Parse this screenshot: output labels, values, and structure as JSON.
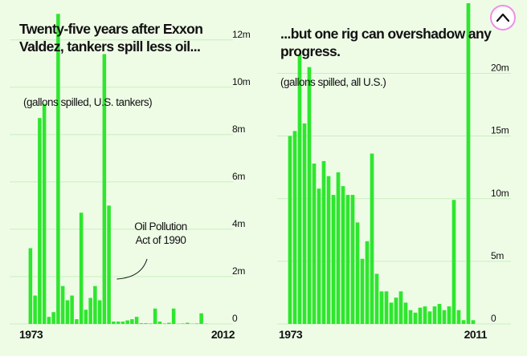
{
  "chart_data": [
    {
      "type": "bar",
      "title": "Twenty-five years after Exxon Valdez, tankers spill less oil...",
      "subtitle": "(gallons spilled, U.S. tankers)",
      "x_start_label": "1973",
      "x_end_label": "2012",
      "y_unit": "m",
      "ylim": [
        0,
        12.5
      ],
      "y_ticks": [
        {
          "value": 0,
          "label": "0"
        },
        {
          "value": 2,
          "label": "2m"
        },
        {
          "value": 4,
          "label": "4m"
        },
        {
          "value": 6,
          "label": "6m"
        },
        {
          "value": 8,
          "label": "8m"
        },
        {
          "value": 10,
          "label": "10m"
        },
        {
          "value": 12,
          "label": "12m"
        }
      ],
      "grid": true,
      "annotation": {
        "lines": [
          "Oil Pollution",
          "Act of 1990"
        ],
        "year": 1990
      },
      "categories": [
        1973,
        1974,
        1975,
        1976,
        1977,
        1978,
        1979,
        1980,
        1981,
        1982,
        1983,
        1984,
        1985,
        1986,
        1987,
        1988,
        1989,
        1990,
        1991,
        1992,
        1993,
        1994,
        1995,
        1996,
        1997,
        1998,
        1999,
        2000,
        2001,
        2002,
        2003,
        2004,
        2005,
        2006,
        2007,
        2008,
        2009,
        2010,
        2011,
        2012
      ],
      "values": [
        3.2,
        1.2,
        8.7,
        9.3,
        0.3,
        0.5,
        13.1,
        1.6,
        1.0,
        1.2,
        0.2,
        4.7,
        0.6,
        1.1,
        1.6,
        1.0,
        11.4,
        5.0,
        0.1,
        0.1,
        0.1,
        0.15,
        0.2,
        0.3,
        0.03,
        0.03,
        0.02,
        0.65,
        0.1,
        0.02,
        0.05,
        0.65,
        0.01,
        0.02,
        0.05,
        0.01,
        0.02,
        0.45,
        0.01,
        0
      ]
    },
    {
      "type": "bar",
      "title": "...but one rig can overshadow any progress.",
      "subtitle": "(gallons spilled, all U.S.)",
      "x_start_label": "1973",
      "x_end_label": "2011",
      "y_unit": "m",
      "ylim": [
        0,
        25.6
      ],
      "y_ticks": [
        {
          "value": 0,
          "label": "0"
        },
        {
          "value": 5,
          "label": "5m"
        },
        {
          "value": 10,
          "label": "10m"
        },
        {
          "value": 15,
          "label": "15m"
        },
        {
          "value": 20,
          "label": "20m"
        }
      ],
      "grid": true,
      "categories": [
        1973,
        1974,
        1975,
        1976,
        1977,
        1978,
        1979,
        1980,
        1981,
        1982,
        1983,
        1984,
        1985,
        1986,
        1987,
        1988,
        1989,
        1990,
        1991,
        1992,
        1993,
        1994,
        1995,
        1996,
        1997,
        1998,
        1999,
        2000,
        2001,
        2002,
        2003,
        2004,
        2005,
        2006,
        2007,
        2008,
        2009,
        2010,
        2011
      ],
      "values": [
        15.0,
        15.4,
        21.5,
        16.0,
        20.5,
        12.8,
        10.8,
        13.0,
        11.8,
        10.3,
        12.1,
        11.0,
        10.3,
        10.3,
        8.1,
        5.2,
        6.6,
        13.6,
        4.0,
        2.6,
        2.6,
        1.7,
        2.1,
        2.6,
        1.7,
        1.1,
        0.9,
        1.3,
        1.4,
        1.0,
        1.4,
        1.6,
        1.1,
        1.4,
        9.9,
        1.1,
        0.3,
        25.6,
        0.3
      ]
    }
  ],
  "colors": {
    "background": "#eefce6",
    "bar": "#2ee62e",
    "grid": "#c8efbe",
    "text": "#111111",
    "button_border": "#ef8fe6",
    "button_fill": "#ffffff"
  },
  "scroll_button": {
    "icon": "chevron-up-icon"
  }
}
